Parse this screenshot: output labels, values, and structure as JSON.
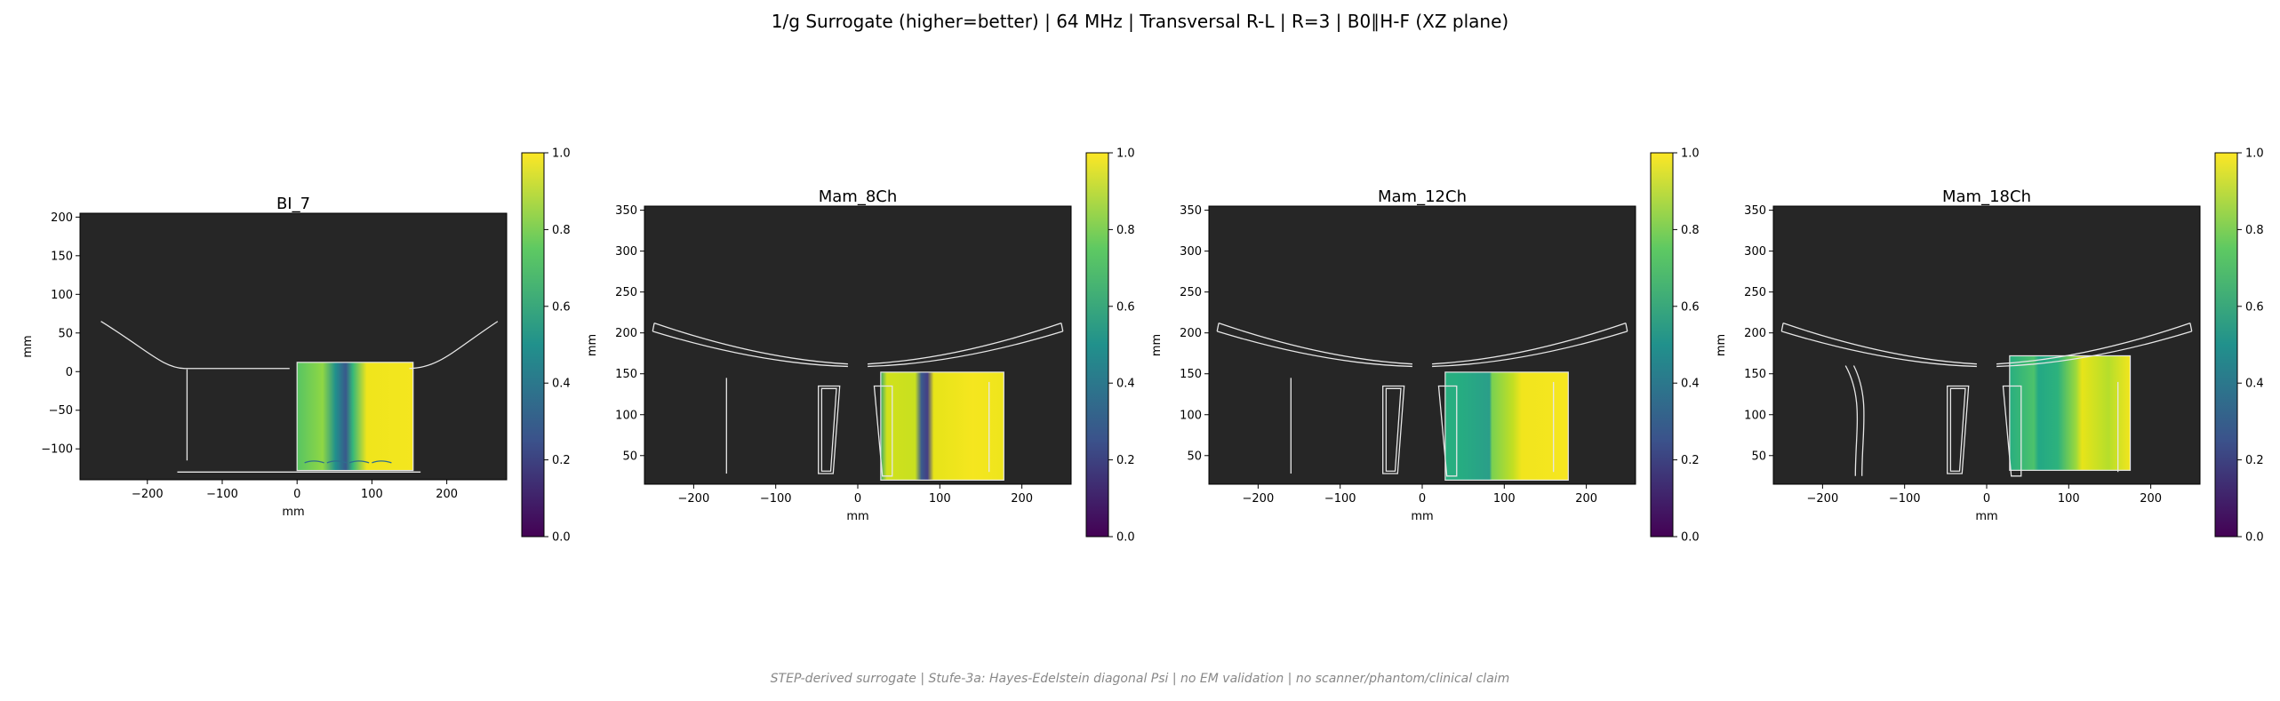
{
  "figure": {
    "title": "1/g Surrogate (higher=better) | 64 MHz | Transversal R-L | R=3 | B0∥H-F (XZ plane)",
    "footnote": "STEP-derived surrogate | Stufe-3a: Hayes-Edelstein diagonal Psi | no EM validation | no scanner/phantom/clinical claim"
  },
  "colors": {
    "panel_background": "#262626",
    "outline": "#e6e6e6",
    "colormap": [
      "#440154",
      "#3b528b",
      "#21918c",
      "#5ec962",
      "#fde725"
    ],
    "field_high": "#f1e52a"
  },
  "chart_data": [
    {
      "type": "heatmap",
      "title": "BI_7",
      "xlabel": "mm",
      "ylabel": "mm",
      "xlim": [
        -290,
        280
      ],
      "ylim": [
        -140,
        205
      ],
      "xticks": [
        -200,
        -100,
        0,
        100,
        200
      ],
      "yticks": [
        -100,
        -50,
        0,
        50,
        100,
        150,
        200
      ],
      "colorbar": {
        "range": [
          0,
          1
        ],
        "ticks": [
          "0.0",
          "0.2",
          "0.4",
          "0.6",
          "0.8",
          "1.0"
        ]
      },
      "field_region": {
        "x": [
          0,
          155
        ],
        "y": [
          -128,
          12
        ]
      },
      "field_value_range": [
        0.4,
        1.0
      ],
      "grid": false
    },
    {
      "type": "heatmap",
      "title": "Mam_8Ch",
      "xlabel": "mm",
      "ylabel": "mm",
      "xlim": [
        -260,
        260
      ],
      "ylim": [
        15,
        355
      ],
      "xticks": [
        -200,
        -100,
        0,
        100,
        200
      ],
      "yticks": [
        50,
        100,
        150,
        200,
        250,
        300,
        350
      ],
      "colorbar": {
        "range": [
          0,
          1
        ],
        "ticks": [
          "0.0",
          "0.2",
          "0.4",
          "0.6",
          "0.8",
          "1.0"
        ]
      },
      "field_region": {
        "x": [
          28,
          178
        ],
        "y": [
          20,
          152
        ]
      },
      "field_value_range": [
        0.3,
        1.0
      ],
      "grid": false
    },
    {
      "type": "heatmap",
      "title": "Mam_12Ch",
      "xlabel": "mm",
      "ylabel": "mm",
      "xlim": [
        -260,
        260
      ],
      "ylim": [
        15,
        355
      ],
      "xticks": [
        -200,
        -100,
        0,
        100,
        200
      ],
      "yticks": [
        50,
        100,
        150,
        200,
        250,
        300,
        350
      ],
      "colorbar": {
        "range": [
          0,
          1
        ],
        "ticks": [
          "0.0",
          "0.2",
          "0.4",
          "0.6",
          "0.8",
          "1.0"
        ]
      },
      "field_region": {
        "x": [
          28,
          178
        ],
        "y": [
          20,
          152
        ]
      },
      "field_value_range": [
        0.55,
        1.0
      ],
      "grid": false
    },
    {
      "type": "heatmap",
      "title": "Mam_18Ch",
      "xlabel": "mm",
      "ylabel": "mm",
      "xlim": [
        -260,
        260
      ],
      "ylim": [
        15,
        355
      ],
      "xticks": [
        -200,
        -100,
        0,
        100,
        200
      ],
      "yticks": [
        50,
        100,
        150,
        200,
        250,
        300,
        350
      ],
      "colorbar": {
        "range": [
          0,
          1
        ],
        "ticks": [
          "0.0",
          "0.2",
          "0.4",
          "0.6",
          "0.8",
          "1.0"
        ]
      },
      "field_region": {
        "x": [
          28,
          175
        ],
        "y": [
          32,
          172
        ]
      },
      "field_value_range": [
        0.45,
        1.0
      ],
      "grid": false
    }
  ]
}
